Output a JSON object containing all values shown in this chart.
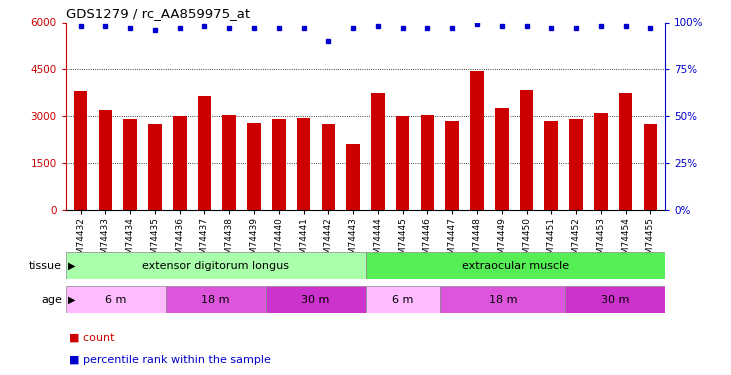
{
  "title": "GDS1279 / rc_AA859975_at",
  "samples": [
    "GSM74432",
    "GSM74433",
    "GSM74434",
    "GSM74435",
    "GSM74436",
    "GSM74437",
    "GSM74438",
    "GSM74439",
    "GSM74440",
    "GSM74441",
    "GSM74442",
    "GSM74443",
    "GSM74444",
    "GSM74445",
    "GSM74446",
    "GSM74447",
    "GSM74448",
    "GSM74449",
    "GSM74450",
    "GSM74451",
    "GSM74452",
    "GSM74453",
    "GSM74454",
    "GSM74455"
  ],
  "counts": [
    3820,
    3200,
    2900,
    2750,
    3020,
    3650,
    3050,
    2800,
    2900,
    2950,
    2750,
    2100,
    3750,
    3000,
    3050,
    2850,
    4450,
    3250,
    3850,
    2850,
    2900,
    3100,
    3750,
    2750
  ],
  "percentile_ranks": [
    98,
    98,
    97,
    96,
    97,
    98,
    97,
    97,
    97,
    97,
    90,
    97,
    98,
    97,
    97,
    97,
    99,
    98,
    98,
    97,
    97,
    98,
    98,
    97
  ],
  "bar_color": "#cc0000",
  "dot_color": "#0000cc",
  "ylim_left": [
    0,
    6000
  ],
  "ylim_right": [
    0,
    100
  ],
  "yticks_left": [
    0,
    1500,
    3000,
    4500,
    6000
  ],
  "yticks_right": [
    0,
    25,
    50,
    75,
    100
  ],
  "tissue_groups": [
    {
      "label": "extensor digitorum longus",
      "start": 0,
      "end": 12,
      "color": "#aaffaa"
    },
    {
      "label": "extraocular muscle",
      "start": 12,
      "end": 24,
      "color": "#55ee55"
    }
  ],
  "age_groups": [
    {
      "label": "6 m",
      "start": 0,
      "end": 4,
      "color": "#ffbbff"
    },
    {
      "label": "18 m",
      "start": 4,
      "end": 8,
      "color": "#dd55dd"
    },
    {
      "label": "30 m",
      "start": 8,
      "end": 12,
      "color": "#cc33cc"
    },
    {
      "label": "6 m",
      "start": 12,
      "end": 15,
      "color": "#ffbbff"
    },
    {
      "label": "18 m",
      "start": 15,
      "end": 20,
      "color": "#dd55dd"
    },
    {
      "label": "30 m",
      "start": 20,
      "end": 24,
      "color": "#cc33cc"
    }
  ],
  "background_color": "#ffffff",
  "axis_color_left": "#cc0000",
  "axis_color_right": "#0000cc",
  "legend_count_label": "count",
  "legend_pct_label": "percentile rank within the sample"
}
